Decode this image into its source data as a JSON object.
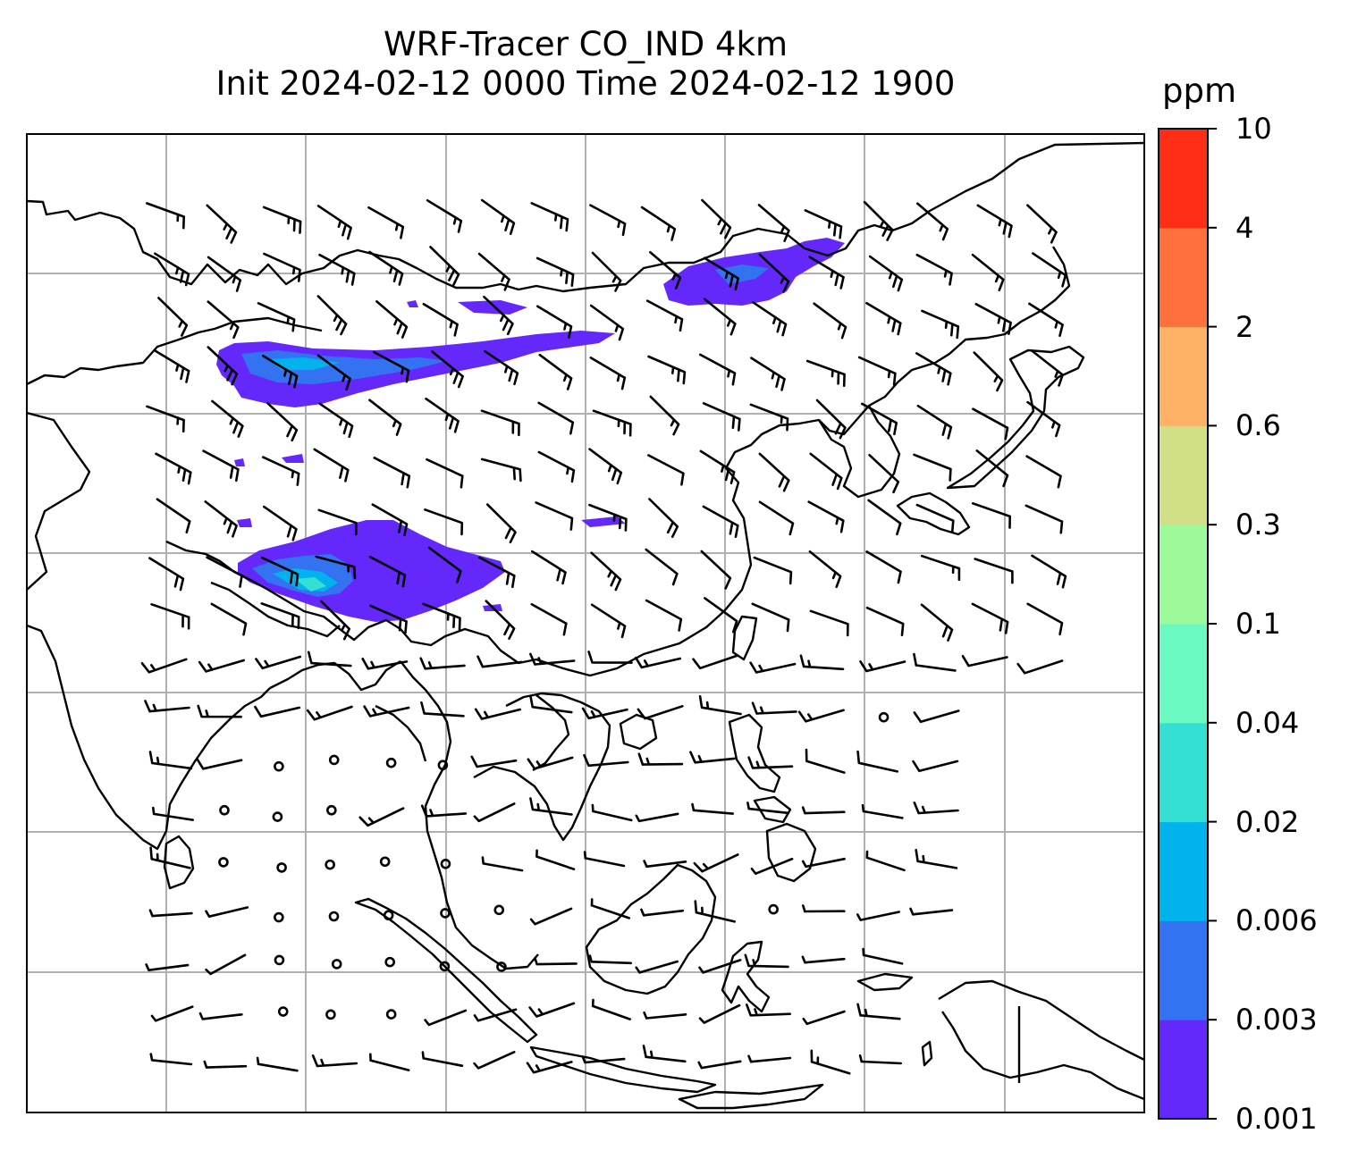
{
  "title": {
    "line1": "WRF-Tracer CO_IND 4km",
    "line2": "Init 2024-02-12 0000 Time 2024-02-12 1900"
  },
  "colorbar": {
    "unit": "ppm",
    "levels": [
      "0.001",
      "0.003",
      "0.006",
      "0.02",
      "0.04",
      "0.1",
      "0.3",
      "0.6",
      "2",
      "4",
      "10"
    ],
    "colors": [
      "#6428fa",
      "#3373f2",
      "#01b3ec",
      "#34e0d4",
      "#6bf9c2",
      "#9cfa9a",
      "#d1e086",
      "#fdb266",
      "#fe713d",
      "#fe2d16"
    ]
  },
  "map": {
    "gridline_color": "#b0b0b0",
    "coastline_color": "#000000",
    "plume_colors": {
      "outer": "#6428fa",
      "mid": "#3373f2",
      "inner": "#01b3ec",
      "core": "#34e0d4"
    }
  }
}
